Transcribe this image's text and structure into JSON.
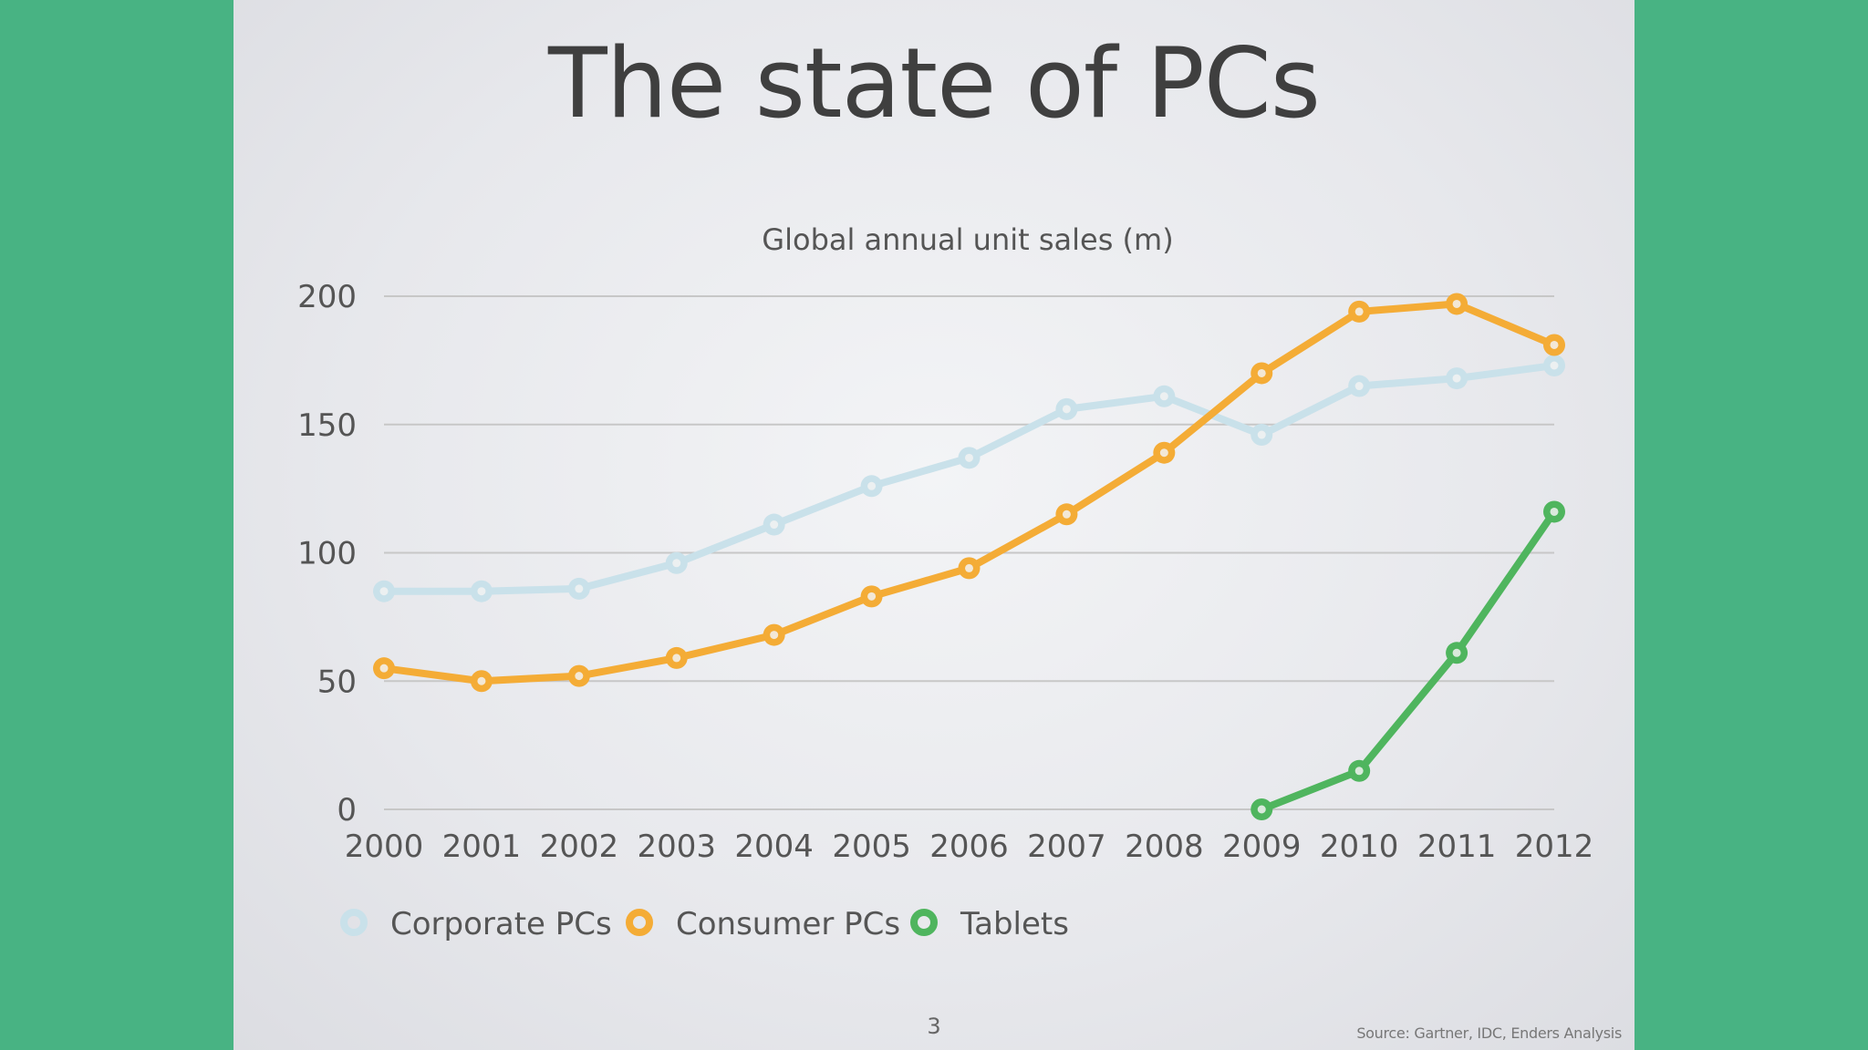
{
  "slide": {
    "title": "The state of PCs",
    "page_number": "3",
    "source": "Source: Gartner, IDC, Enders Analysis"
  },
  "chart_data": {
    "type": "line",
    "title": "Global annual unit sales (m)",
    "xlabel": "",
    "ylabel": "",
    "x": [
      "2000",
      "2001",
      "2002",
      "2003",
      "2004",
      "2005",
      "2006",
      "2007",
      "2008",
      "2009",
      "2010",
      "2011",
      "2012"
    ],
    "ylim": [
      0,
      200
    ],
    "yticks": [
      0,
      50,
      100,
      150,
      200
    ],
    "grid": true,
    "legend_position": "bottom-left",
    "series": [
      {
        "name": "Corporate PCs",
        "color": "#c9e1ea",
        "values": [
          85,
          85,
          86,
          96,
          111,
          126,
          137,
          156,
          161,
          146,
          165,
          168,
          173
        ]
      },
      {
        "name": "Consumer PCs",
        "color": "#f4ac36",
        "values": [
          55,
          50,
          52,
          59,
          68,
          83,
          94,
          115,
          139,
          170,
          194,
          197,
          181
        ]
      },
      {
        "name": "Tablets",
        "color": "#4fb55e",
        "values": [
          null,
          null,
          null,
          null,
          null,
          null,
          null,
          null,
          null,
          0,
          15,
          61,
          116
        ]
      }
    ]
  }
}
